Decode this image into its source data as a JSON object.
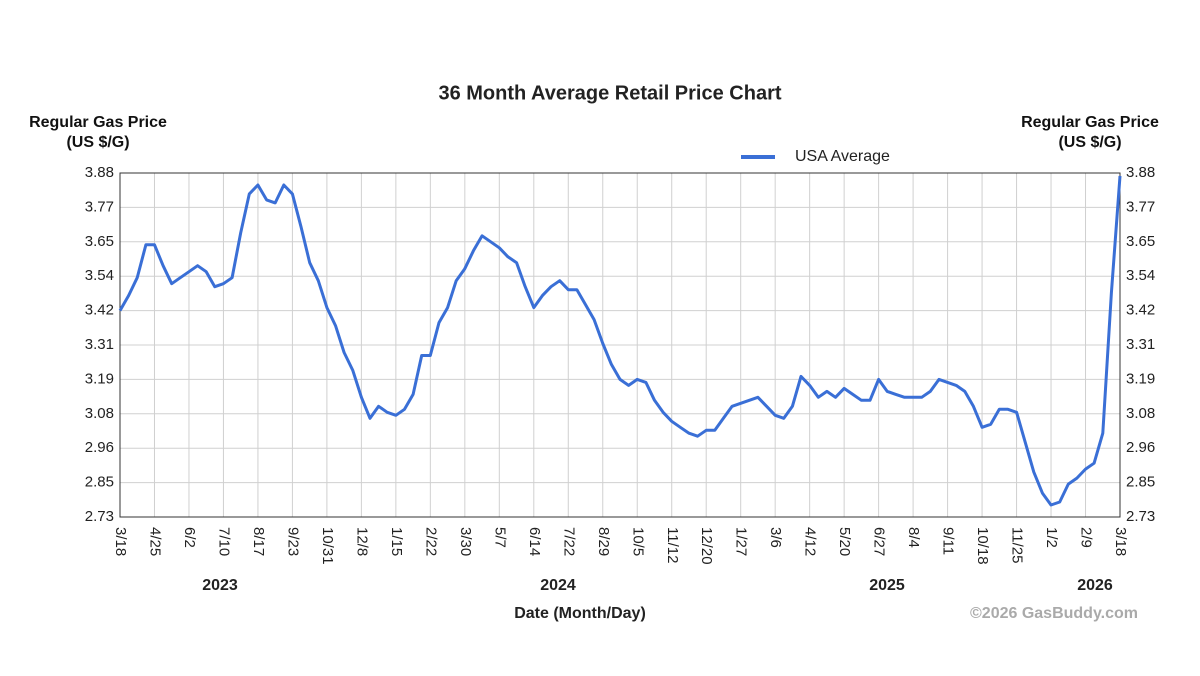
{
  "chart_data": {
    "type": "line",
    "title": "36 Month Average Retail Price Chart",
    "y_label": "Regular Gas Price (US $/G)",
    "y2_label": "Regular Gas Price (US $/G)",
    "x_label": "Date (Month/Day)",
    "credit": "©2026 GasBuddy.com",
    "year_labels": [
      "2023",
      "2024",
      "2025",
      "2026"
    ],
    "categories": [
      "3/18",
      null,
      null,
      null,
      "4/25",
      null,
      null,
      null,
      "6/2",
      null,
      null,
      null,
      "7/10",
      null,
      null,
      null,
      "8/17",
      null,
      null,
      null,
      "9/23",
      null,
      null,
      null,
      "10/31",
      null,
      null,
      null,
      "12/8",
      null,
      null,
      null,
      "1/15",
      null,
      null,
      null,
      "2/22",
      null,
      null,
      null,
      "3/30",
      null,
      null,
      null,
      "5/7",
      null,
      null,
      null,
      "6/14",
      null,
      null,
      null,
      "7/22",
      null,
      null,
      null,
      "8/29",
      null,
      null,
      null,
      "10/5",
      null,
      null,
      null,
      "11/12",
      null,
      null,
      null,
      "12/20",
      null,
      null,
      null,
      "1/27",
      null,
      null,
      null,
      "3/6",
      null,
      null,
      null,
      "4/12",
      null,
      null,
      null,
      "5/20",
      null,
      null,
      null,
      "6/27",
      null,
      null,
      null,
      "8/4",
      null,
      null,
      null,
      "9/11",
      null,
      null,
      null,
      "10/18",
      null,
      null,
      null,
      "11/25",
      null,
      null,
      null,
      "1/2",
      null,
      null,
      null,
      "2/9",
      null,
      null,
      null,
      "3/18"
    ],
    "series": [
      {
        "name": "USA Average",
        "color": "#3a6fd6",
        "values": [
          3.42,
          3.47,
          3.53,
          3.64,
          3.64,
          3.57,
          3.51,
          3.53,
          3.55,
          3.57,
          3.55,
          3.5,
          3.51,
          3.53,
          3.68,
          3.81,
          3.84,
          3.79,
          3.78,
          3.84,
          3.81,
          3.7,
          3.58,
          3.52,
          3.43,
          3.37,
          3.28,
          3.22,
          3.13,
          3.06,
          3.1,
          3.08,
          3.07,
          3.09,
          3.14,
          3.27,
          3.27,
          3.38,
          3.43,
          3.52,
          3.56,
          3.62,
          3.67,
          3.65,
          3.63,
          3.6,
          3.58,
          3.5,
          3.43,
          3.47,
          3.5,
          3.52,
          3.49,
          3.49,
          3.44,
          3.39,
          3.31,
          3.24,
          3.19,
          3.17,
          3.19,
          3.18,
          3.12,
          3.08,
          3.05,
          3.03,
          3.01,
          3.0,
          3.02,
          3.02,
          3.06,
          3.1,
          3.11,
          3.12,
          3.13,
          3.1,
          3.07,
          3.06,
          3.1,
          3.2,
          3.17,
          3.13,
          3.15,
          3.13,
          3.16,
          3.14,
          3.12,
          3.12,
          3.19,
          3.15,
          3.14,
          3.13,
          3.13,
          3.13,
          3.15,
          3.19,
          3.18,
          3.17,
          3.15,
          3.1,
          3.03,
          3.04,
          3.09,
          3.09,
          3.08,
          2.98,
          2.88,
          2.81,
          2.77,
          2.78,
          2.84,
          2.86,
          2.89,
          2.91,
          3.01,
          3.48,
          3.87
        ]
      }
    ],
    "ylim": [
      2.73,
      3.88
    ],
    "yticks": [
      2.73,
      {
        "value": 2.845,
        "label": "2.85"
      },
      2.96,
      {
        "value": 3.075,
        "label": "3.08"
      },
      3.19,
      {
        "value": 3.305,
        "label": "3.31"
      },
      3.42,
      {
        "value": 3.535,
        "label": "3.54"
      },
      3.65,
      {
        "value": 3.765,
        "label": "3.77"
      },
      3.88
    ],
    "grid": true,
    "legend": "top"
  }
}
